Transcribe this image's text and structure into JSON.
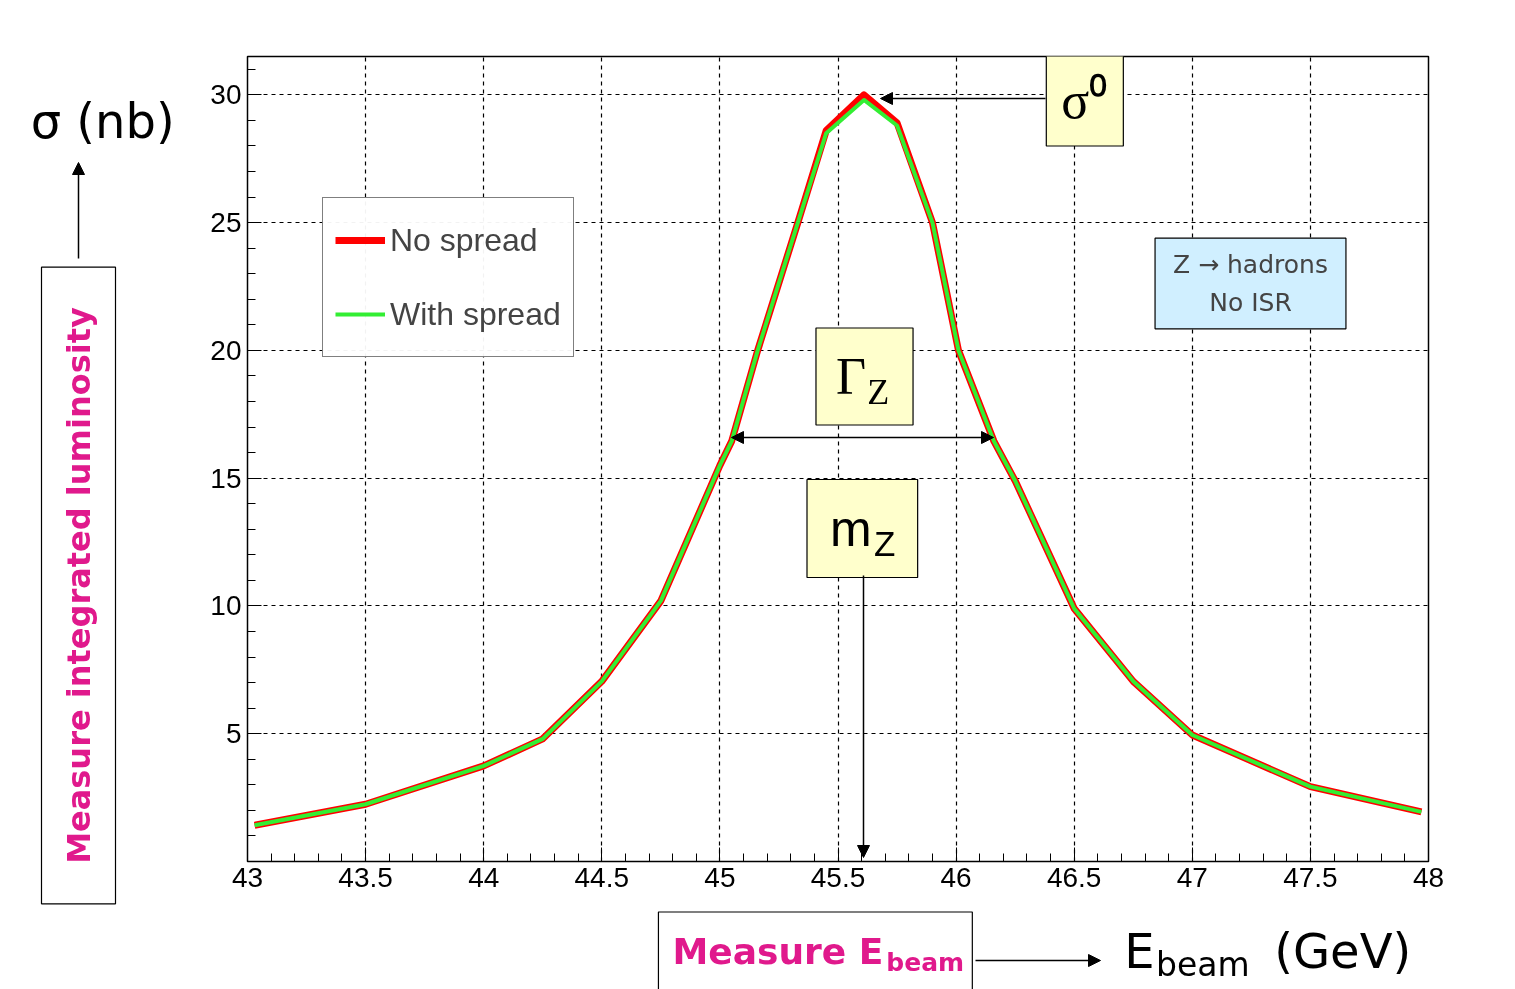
{
  "chart_data": {
    "type": "line",
    "xlabel": "E$_{beam}$ (GeV)",
    "ylabel": "σ (nb)",
    "xlim": [
      43,
      48
    ],
    "ylim": [
      0,
      31.5
    ],
    "xticks": [
      43,
      43.5,
      44,
      44.5,
      45,
      45.5,
      46,
      46.5,
      47,
      47.5,
      48
    ],
    "yticks": [
      5,
      10,
      15,
      20,
      25,
      30
    ],
    "grid": true,
    "legend": "top left",
    "marker": "none",
    "line_style": "solid",
    "series": [
      {
        "name": "No spread",
        "color": "#ff0000",
        "x": [
          43.03,
          43.5,
          44,
          44.25,
          44.5,
          44.75,
          45,
          45.05,
          45.16,
          45.33,
          45.45,
          45.61,
          45.75,
          45.9,
          46.01,
          46.16,
          46.25,
          46.5,
          46.75,
          47,
          47.5,
          47.97
        ],
        "values": [
          1.42,
          2.24,
          3.74,
          4.8,
          7.05,
          10.2,
          15.5,
          16.45,
          20,
          25,
          28.6,
          30,
          28.9,
          25,
          20,
          16.45,
          14.9,
          9.9,
          7.05,
          4.95,
          2.93,
          1.94
        ]
      },
      {
        "name": "With spread",
        "color": "#33ee33",
        "x": [
          43.03,
          43.5,
          44,
          44.25,
          44.5,
          44.75,
          45,
          45.05,
          45.16,
          45.33,
          45.45,
          45.61,
          45.75,
          45.9,
          46.01,
          46.16,
          46.25,
          46.5,
          46.75,
          47,
          47.5,
          47.97
        ],
        "values": [
          1.42,
          2.24,
          3.74,
          4.8,
          7.05,
          10.2,
          15.5,
          16.45,
          20,
          25,
          28.5,
          29.8,
          28.8,
          25,
          20,
          16.45,
          14.9,
          9.9,
          7.05,
          4.95,
          2.93,
          1.94
        ]
      }
    ],
    "annotations": [
      "σ⁰",
      "Γ$_{Z}$",
      "m$_{Z}$",
      "Z → hadrons\nNo ISR",
      "Measure integrated luminosity",
      "Measure E$_{beam}$"
    ]
  }
}
